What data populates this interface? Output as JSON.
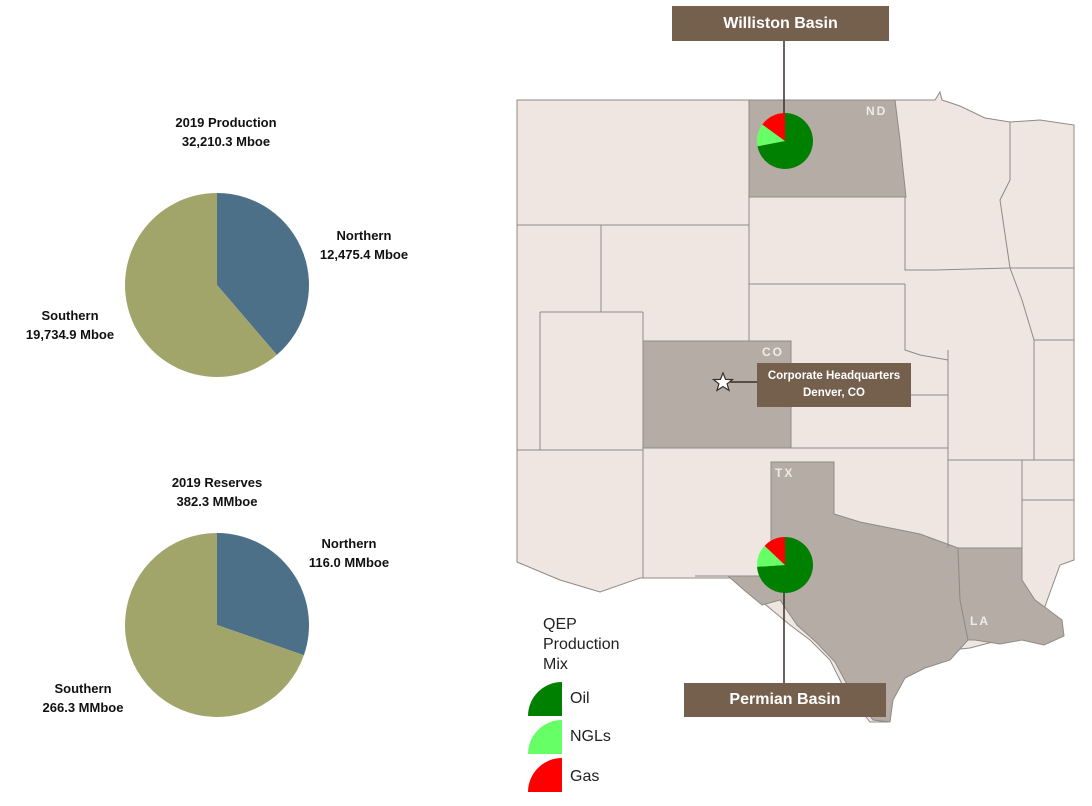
{
  "chart_data": [
    {
      "type": "pie",
      "title": "2019 Production",
      "subtitle": "32,210.3 Mboe",
      "slices": [
        {
          "name": "Northern",
          "value": 12475.4,
          "label": "12,475.4 Mboe",
          "color": "#4d7089"
        },
        {
          "name": "Southern",
          "value": 19734.9,
          "label": "19,734.9 Mboe",
          "color": "#a1a56a"
        }
      ]
    },
    {
      "type": "pie",
      "title": "2019 Reserves",
      "subtitle": "382.3 MMboe",
      "slices": [
        {
          "name": "Northern",
          "value": 116.0,
          "label": "116.0 MMboe",
          "color": "#4d7089"
        },
        {
          "name": "Southern",
          "value": 266.3,
          "label": "266.3 MMboe",
          "color": "#a1a56a"
        }
      ]
    },
    {
      "type": "pie",
      "title": "Williston Basin",
      "slices": [
        {
          "name": "Oil",
          "value": 72,
          "color": "#008000"
        },
        {
          "name": "NGLs",
          "value": 13,
          "color": "#66ff66"
        },
        {
          "name": "Gas",
          "value": 15,
          "color": "#ff0000"
        }
      ]
    },
    {
      "type": "pie",
      "title": "Permian Basin",
      "slices": [
        {
          "name": "Oil",
          "value": 74,
          "color": "#008000"
        },
        {
          "name": "NGLs",
          "value": 13,
          "color": "#66ff66"
        },
        {
          "name": "Gas",
          "value": 13,
          "color": "#ff0000"
        }
      ]
    }
  ],
  "map": {
    "states": [
      "ND",
      "CO",
      "TX",
      "LA"
    ],
    "hq_line1": "Corporate Headquarters",
    "hq_line2": "Denver, CO",
    "williston": "Williston Basin",
    "permian": "Permian Basin"
  },
  "legend": {
    "title_lines": [
      "QEP",
      "Production",
      "Mix"
    ],
    "items": [
      {
        "label": "Oil",
        "color": "#008000"
      },
      {
        "label": "NGLs",
        "color": "#66ff66"
      },
      {
        "label": "Gas",
        "color": "#ff0000"
      }
    ]
  },
  "colors": {
    "map_land": "#efe6e1",
    "map_highlight": "#b5aca6",
    "map_border": "#8f8a86",
    "box_brown": "#75604d"
  }
}
